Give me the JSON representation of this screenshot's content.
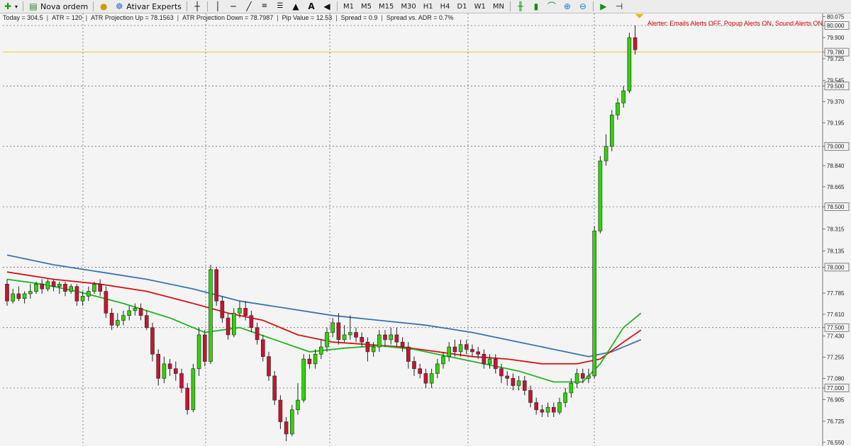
{
  "toolbar": {
    "new_order_label": "Nova ordem",
    "experts_label": "Ativar Experts",
    "timeframes": [
      "M1",
      "M5",
      "M15",
      "M30",
      "H1",
      "H4",
      "D1",
      "W1",
      "MN"
    ],
    "icons": [
      "new-chart-icon",
      "order-icon",
      "info-icon",
      "experts-icon",
      "crosshair-icon",
      "vertical-line-icon",
      "horizontal-line-icon",
      "trendline-icon",
      "fibonacci-icon",
      "shapes-icon",
      "text-icon",
      "arrow-icon",
      "bar-chart-icon",
      "candlestick-icon",
      "line-chart-icon",
      "zoom-in-icon",
      "zoom-out-icon",
      "autoscroll-icon",
      "shift-icon"
    ]
  },
  "info": {
    "today": "Today = 304.5",
    "atr": "ATR = 120",
    "atr_up": "ATR Projection Up = 78.1563",
    "atr_down": "ATR Projection Down = 78.7987",
    "pip": "Pip Value = 12.53",
    "spread": "Spread = 0.9",
    "spread_adr": "Spread vs. ADR = 0.7%"
  },
  "alert_text": "Alerter:  Emails Alerts OFF,  Popup Alerts ON,  Sound Alerts ON",
  "colors": {
    "bull": "#32d20a",
    "bear": "#c81432",
    "ma_fast": "#22b422",
    "ma_mid": "#d21414",
    "ma_slow": "#3c73aa",
    "level_line": "#f0b400",
    "grid": "#000000"
  },
  "chart_data": {
    "type": "candlestick",
    "y_ticks": [
      {
        "v": 80.075,
        "label": "80.075"
      },
      {
        "v": 80.0,
        "label": "80.000",
        "box": true
      },
      {
        "v": 79.9,
        "label": "79.900"
      },
      {
        "v": 79.78,
        "label": "79.780",
        "box": true
      },
      {
        "v": 79.725,
        "label": "79.725"
      },
      {
        "v": 79.545,
        "label": "79.545"
      },
      {
        "v": 79.5,
        "label": "79.500",
        "box": true
      },
      {
        "v": 79.37,
        "label": "79.370"
      },
      {
        "v": 79.195,
        "label": "79.195"
      },
      {
        "v": 79.0,
        "label": "79.000",
        "box": true
      },
      {
        "v": 78.84,
        "label": "78.840"
      },
      {
        "v": 78.665,
        "label": "78.665"
      },
      {
        "v": 78.5,
        "label": "78.500",
        "box": true
      },
      {
        "v": 78.315,
        "label": "78.315"
      },
      {
        "v": 78.135,
        "label": "78.135"
      },
      {
        "v": 78.0,
        "label": "78.000",
        "box": true
      },
      {
        "v": 77.785,
        "label": "77.785"
      },
      {
        "v": 77.61,
        "label": "77.610"
      },
      {
        "v": 77.5,
        "label": "77.500",
        "box": true
      },
      {
        "v": 77.43,
        "label": "77.430"
      },
      {
        "v": 77.255,
        "label": "77.255"
      },
      {
        "v": 77.08,
        "label": "77.080"
      },
      {
        "v": 77.0,
        "label": "77.000",
        "box": true
      },
      {
        "v": 76.905,
        "label": "76.905"
      },
      {
        "v": 76.725,
        "label": "76.725"
      },
      {
        "v": 76.55,
        "label": "76.550"
      }
    ],
    "horizontal_levels": [
      80.0,
      79.5,
      79.0,
      78.5,
      78.0,
      77.5,
      77.0
    ],
    "current_price": 79.78,
    "candles": [
      [
        77.86,
        77.72,
        77.9,
        77.68
      ],
      [
        77.72,
        77.78,
        77.82,
        77.7
      ],
      [
        77.78,
        77.74,
        77.84,
        77.72
      ],
      [
        77.74,
        77.78,
        77.8,
        77.7
      ],
      [
        77.78,
        77.8,
        77.86,
        77.74
      ],
      [
        77.8,
        77.86,
        77.88,
        77.78
      ],
      [
        77.86,
        77.82,
        77.9,
        77.78
      ],
      [
        77.82,
        77.88,
        77.9,
        77.8
      ],
      [
        77.88,
        77.84,
        77.9,
        77.8
      ],
      [
        77.84,
        77.86,
        77.88,
        77.78
      ],
      [
        77.86,
        77.8,
        77.88,
        77.76
      ],
      [
        77.8,
        77.84,
        77.86,
        77.78
      ],
      [
        77.84,
        77.72,
        77.86,
        77.68
      ],
      [
        77.72,
        77.76,
        77.8,
        77.68
      ],
      [
        77.76,
        77.8,
        77.84,
        77.72
      ],
      [
        77.8,
        77.86,
        77.88,
        77.78
      ],
      [
        77.86,
        77.8,
        77.9,
        77.76
      ],
      [
        77.8,
        77.62,
        77.84,
        77.58
      ],
      [
        77.62,
        77.52,
        77.66,
        77.48
      ],
      [
        77.52,
        77.56,
        77.62,
        77.5
      ],
      [
        77.56,
        77.6,
        77.64,
        77.52
      ],
      [
        77.6,
        77.64,
        77.68,
        77.56
      ],
      [
        77.64,
        77.66,
        77.7,
        77.6
      ],
      [
        77.66,
        77.6,
        77.7,
        77.56
      ],
      [
        77.6,
        77.5,
        77.64,
        77.48
      ],
      [
        77.5,
        77.28,
        77.54,
        77.22
      ],
      [
        77.28,
        77.08,
        77.32,
        77.02
      ],
      [
        77.08,
        77.2,
        77.26,
        77.04
      ],
      [
        77.2,
        77.16,
        77.24,
        77.1
      ],
      [
        77.16,
        77.12,
        77.22,
        77.06
      ],
      [
        77.12,
        77.0,
        77.16,
        76.96
      ],
      [
        77.0,
        76.82,
        77.04,
        76.78
      ],
      [
        76.82,
        77.16,
        77.2,
        76.8
      ],
      [
        77.16,
        77.44,
        77.5,
        77.1
      ],
      [
        77.44,
        77.22,
        77.48,
        77.18
      ],
      [
        77.22,
        77.98,
        78.02,
        77.2
      ],
      [
        77.98,
        77.72,
        78.0,
        77.68
      ],
      [
        77.72,
        77.58,
        77.76,
        77.54
      ],
      [
        77.58,
        77.44,
        77.62,
        77.4
      ],
      [
        77.44,
        77.62,
        77.66,
        77.42
      ],
      [
        77.62,
        77.66,
        77.72,
        77.58
      ],
      [
        77.66,
        77.6,
        77.72,
        77.56
      ],
      [
        77.6,
        77.5,
        77.64,
        77.46
      ],
      [
        77.5,
        77.4,
        77.54,
        77.36
      ],
      [
        77.4,
        77.26,
        77.44,
        77.22
      ],
      [
        77.26,
        77.1,
        77.3,
        77.06
      ],
      [
        77.1,
        76.9,
        77.14,
        76.86
      ],
      [
        76.9,
        76.72,
        76.94,
        76.66
      ],
      [
        76.72,
        76.62,
        76.76,
        76.56
      ],
      [
        76.62,
        76.82,
        76.86,
        76.6
      ],
      [
        76.82,
        76.9,
        77.04,
        76.78
      ],
      [
        76.9,
        77.24,
        77.28,
        76.88
      ],
      [
        77.24,
        77.2,
        77.28,
        77.16
      ],
      [
        77.2,
        77.28,
        77.32,
        77.16
      ],
      [
        77.28,
        77.34,
        77.4,
        77.24
      ],
      [
        77.34,
        77.46,
        77.5,
        77.3
      ],
      [
        77.46,
        77.54,
        77.58,
        77.42
      ],
      [
        77.54,
        77.4,
        77.62,
        77.36
      ],
      [
        77.4,
        77.44,
        77.52,
        77.38
      ],
      [
        77.44,
        77.46,
        77.6,
        77.4
      ],
      [
        77.46,
        77.42,
        77.5,
        77.38
      ],
      [
        77.42,
        77.38,
        77.46,
        77.34
      ],
      [
        77.38,
        77.3,
        77.42,
        77.22
      ],
      [
        77.3,
        77.34,
        77.38,
        77.26
      ],
      [
        77.34,
        77.44,
        77.48,
        77.3
      ],
      [
        77.44,
        77.4,
        77.48,
        77.34
      ],
      [
        77.4,
        77.44,
        77.5,
        77.36
      ],
      [
        77.44,
        77.38,
        77.5,
        77.34
      ],
      [
        77.38,
        77.34,
        77.42,
        77.3
      ],
      [
        77.34,
        77.22,
        77.38,
        77.16
      ],
      [
        77.22,
        77.16,
        77.26,
        77.1
      ],
      [
        77.16,
        77.12,
        77.2,
        77.08
      ],
      [
        77.12,
        77.04,
        77.16,
        77.0
      ],
      [
        77.04,
        77.12,
        77.16,
        77.0
      ],
      [
        77.12,
        77.2,
        77.24,
        77.08
      ],
      [
        77.2,
        77.26,
        77.3,
        77.16
      ],
      [
        77.26,
        77.34,
        77.38,
        77.22
      ],
      [
        77.34,
        77.3,
        77.4,
        77.26
      ],
      [
        77.3,
        77.36,
        77.4,
        77.26
      ],
      [
        77.36,
        77.32,
        77.4,
        77.28
      ],
      [
        77.32,
        77.3,
        77.36,
        77.26
      ],
      [
        77.3,
        77.28,
        77.34,
        77.24
      ],
      [
        77.28,
        77.2,
        77.32,
        77.16
      ],
      [
        77.2,
        77.24,
        77.28,
        77.16
      ],
      [
        77.24,
        77.16,
        77.28,
        77.12
      ],
      [
        77.16,
        77.1,
        77.2,
        77.04
      ],
      [
        77.1,
        77.08,
        77.14,
        77.02
      ],
      [
        77.08,
        77.02,
        77.12,
        76.98
      ],
      [
        77.02,
        77.06,
        77.1,
        76.98
      ],
      [
        77.06,
        76.98,
        77.1,
        76.94
      ],
      [
        76.98,
        76.88,
        77.02,
        76.84
      ],
      [
        76.88,
        76.82,
        76.92,
        76.78
      ],
      [
        76.82,
        76.8,
        76.86,
        76.76
      ],
      [
        76.8,
        76.84,
        76.88,
        76.76
      ],
      [
        76.84,
        76.8,
        76.88,
        76.76
      ],
      [
        76.8,
        76.88,
        76.92,
        76.78
      ],
      [
        76.88,
        76.96,
        77.0,
        76.84
      ],
      [
        76.96,
        77.04,
        77.08,
        76.92
      ],
      [
        77.04,
        77.12,
        77.16,
        77.0
      ],
      [
        77.12,
        77.08,
        77.16,
        77.04
      ],
      [
        77.08,
        77.1,
        77.16,
        77.04
      ],
      [
        77.1,
        78.3,
        78.34,
        77.08
      ],
      [
        78.3,
        78.88,
        78.92,
        78.28
      ],
      [
        78.88,
        79.0,
        79.1,
        78.84
      ],
      [
        79.0,
        79.26,
        79.3,
        78.96
      ],
      [
        79.26,
        79.36,
        79.4,
        79.22
      ],
      [
        79.36,
        79.46,
        79.5,
        79.32
      ],
      [
        79.46,
        79.9,
        79.94,
        79.44
      ],
      [
        79.9,
        79.8,
        80.0,
        79.76
      ]
    ],
    "ma_fast_points": [
      [
        0,
        77.9
      ],
      [
        6,
        77.86
      ],
      [
        12,
        77.8
      ],
      [
        20,
        77.7
      ],
      [
        28,
        77.58
      ],
      [
        34,
        77.46
      ],
      [
        40,
        77.5
      ],
      [
        46,
        77.4
      ],
      [
        52,
        77.3
      ],
      [
        58,
        77.33
      ],
      [
        64,
        77.35
      ],
      [
        70,
        77.32
      ],
      [
        76,
        77.26
      ],
      [
        82,
        77.2
      ],
      [
        88,
        77.14
      ],
      [
        94,
        77.05
      ],
      [
        99,
        77.05
      ],
      [
        102,
        77.2
      ],
      [
        106,
        77.5
      ],
      [
        109,
        77.62
      ]
    ],
    "ma_mid_points": [
      [
        0,
        77.96
      ],
      [
        8,
        77.9
      ],
      [
        16,
        77.86
      ],
      [
        24,
        77.8
      ],
      [
        32,
        77.7
      ],
      [
        38,
        77.62
      ],
      [
        44,
        77.56
      ],
      [
        50,
        77.44
      ],
      [
        56,
        77.38
      ],
      [
        62,
        77.36
      ],
      [
        68,
        77.34
      ],
      [
        74,
        77.3
      ],
      [
        80,
        77.26
      ],
      [
        86,
        77.24
      ],
      [
        92,
        77.2
      ],
      [
        98,
        77.2
      ],
      [
        102,
        77.24
      ],
      [
        106,
        77.38
      ],
      [
        109,
        77.48
      ]
    ],
    "ma_slow_points": [
      [
        0,
        78.1
      ],
      [
        8,
        78.02
      ],
      [
        16,
        77.96
      ],
      [
        24,
        77.9
      ],
      [
        32,
        77.82
      ],
      [
        40,
        77.72
      ],
      [
        48,
        77.66
      ],
      [
        56,
        77.6
      ],
      [
        64,
        77.56
      ],
      [
        72,
        77.52
      ],
      [
        80,
        77.46
      ],
      [
        88,
        77.38
      ],
      [
        96,
        77.3
      ],
      [
        100,
        77.26
      ],
      [
        104,
        77.3
      ],
      [
        109,
        77.4
      ]
    ]
  }
}
